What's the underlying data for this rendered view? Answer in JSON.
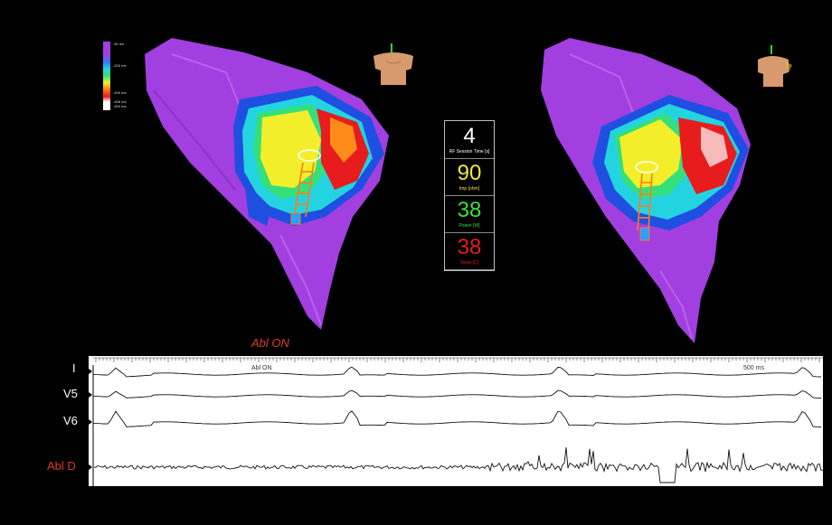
{
  "readout": {
    "rf_time": {
      "value": "4",
      "label": "RF Session Time [s]",
      "color": "#ffffff"
    },
    "impedance": {
      "value": "90",
      "label": "Imp [ohm]",
      "color": "#f2e93a"
    },
    "power": {
      "value": "38",
      "label": "Power [W]",
      "color": "#3fe03f"
    },
    "temperature": {
      "value": "38",
      "label": "Temp [C]",
      "color": "#e81c1c"
    }
  },
  "legend": {
    "labels": [
      "-50 ms",
      "-200 ms",
      "-400 ms",
      "-498 ms",
      "-500 ms"
    ]
  },
  "status_label": "Abl ON",
  "ecg": {
    "leads": [
      "I",
      "V5",
      "V6",
      "Abl D"
    ],
    "marker_text": "Abl ON",
    "scale_text": "500 ms"
  },
  "colors": {
    "purple": "#a23fe0",
    "accent_red": "#e23b2b"
  }
}
